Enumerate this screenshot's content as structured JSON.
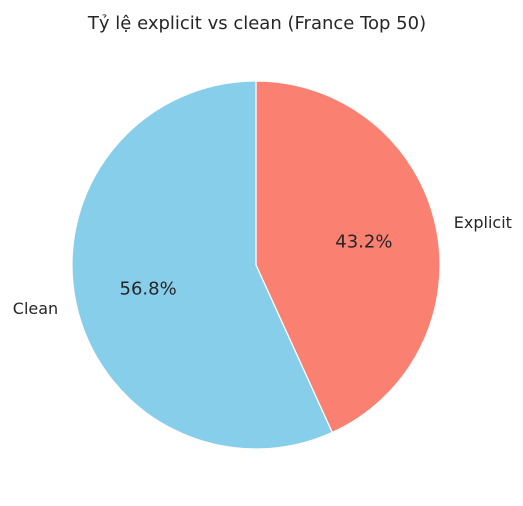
{
  "chart_data": {
    "type": "pie",
    "title": "Tỷ lệ explicit vs clean (France Top 50)",
    "slices": [
      {
        "label": "Explicit",
        "value": 43.2,
        "pct_label": "43.2%",
        "color": "#fa8072"
      },
      {
        "label": "Clean",
        "value": 56.8,
        "pct_label": "56.8%",
        "color": "#87ceeb"
      }
    ],
    "start_angle_deg": 90,
    "direction": "clockwise",
    "edge_color": "#ffffff"
  }
}
